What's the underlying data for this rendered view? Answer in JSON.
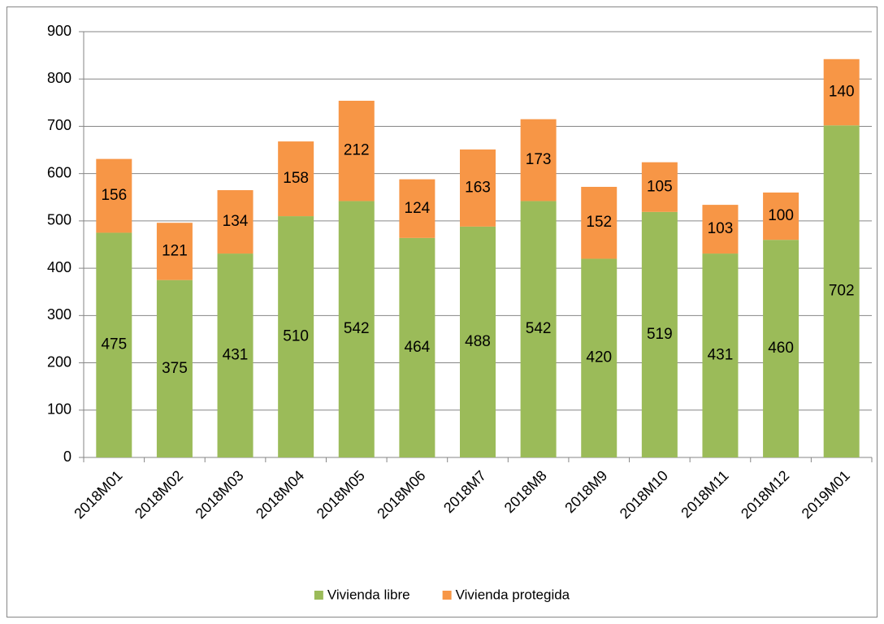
{
  "chart_data": {
    "type": "stacked_bar",
    "categories": [
      "2018M01",
      "2018M02",
      "2018M03",
      "2018M04",
      "2018M05",
      "2018M06",
      "2018M7",
      "2018M8",
      "2018M9",
      "2018M10",
      "2018M11",
      "2018M12",
      "2019M01"
    ],
    "series": [
      {
        "name": "Vivienda libre",
        "color": "#9bbb59",
        "values": [
          475,
          375,
          431,
          510,
          542,
          464,
          488,
          542,
          420,
          519,
          431,
          460,
          702
        ]
      },
      {
        "name": "Vivienda protegida",
        "color": "#f79646",
        "values": [
          156,
          121,
          134,
          158,
          212,
          124,
          163,
          173,
          152,
          105,
          103,
          100,
          140
        ]
      }
    ],
    "ylim": [
      0,
      900
    ],
    "yticks": [
      0,
      100,
      200,
      300,
      400,
      500,
      600,
      700,
      800,
      900
    ],
    "grid": true,
    "legend": "bottom"
  }
}
